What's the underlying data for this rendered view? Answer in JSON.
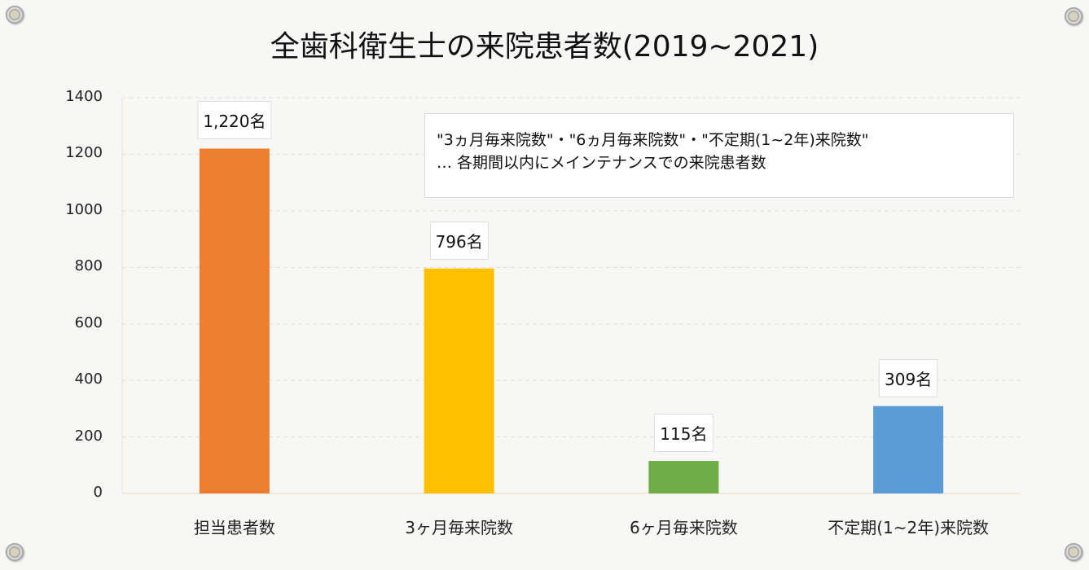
{
  "chart_data": {
    "type": "bar",
    "title": "全歯科衛生士の来院患者数(2019~2021)",
    "categories": [
      "担当患者数",
      "3ヶ月毎来院数",
      "6ヶ月毎来院数",
      "不定期(1~2年)来院数"
    ],
    "values": [
      1220,
      796,
      115,
      309
    ],
    "data_labels": [
      "1,220名",
      "796名",
      "115名",
      "309名"
    ],
    "colors": [
      "#ed7d31",
      "#ffc000",
      "#70ad47",
      "#5b9bd5"
    ],
    "ylim": [
      0,
      1400
    ],
    "yticks": [
      0,
      200,
      400,
      600,
      800,
      1000,
      1200,
      1400
    ],
    "grid": true,
    "xlabel": "",
    "ylabel": "",
    "annotation": {
      "line1": "\"3ヵ月毎来院数\"・\"6ヵ月毎来院数\"・\"不定期(1~2年)来院数\"",
      "line2": " … 各期間以内にメインテナンスでの来院患者数"
    }
  }
}
